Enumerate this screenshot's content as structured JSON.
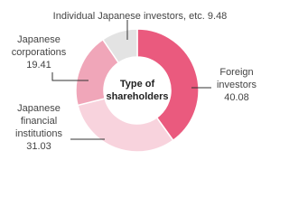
{
  "chart_data": {
    "type": "donut",
    "title": "Type of shareholders",
    "categories": [
      "Foreign investors",
      "Japanese financial institutions",
      "Japanese corporations",
      "Individual Japanese investors, etc."
    ],
    "values": [
      40.08,
      31.03,
      19.41,
      9.48
    ],
    "colors": [
      "#ea5a7e",
      "#f8d3dd",
      "#f0a6b9",
      "#e3e3e3"
    ]
  }
}
